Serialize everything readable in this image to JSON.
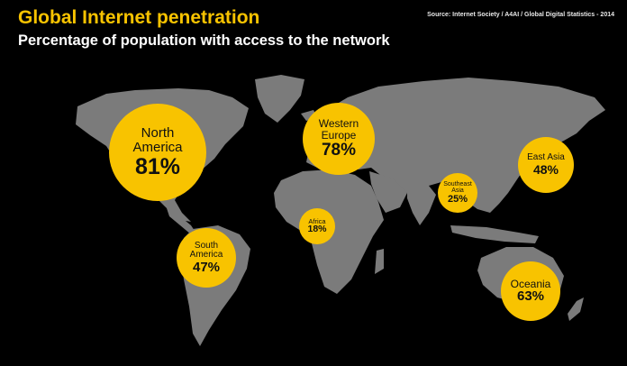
{
  "header": {
    "title": "Global Internet penetration",
    "subtitle": "Percentage of population with access to the network",
    "source": "Source: Internet Society / A4AI / Global Digital Statistics - 2014"
  },
  "colors": {
    "background": "#000000",
    "land": "#7b7b7b",
    "bubble": "#F8C300",
    "title": "#F8C300"
  },
  "regions": [
    {
      "label": "North America",
      "value": "81%"
    },
    {
      "label": "Western Europe",
      "value": "78%"
    },
    {
      "label": "East Asia",
      "value": "48%"
    },
    {
      "label": "Southeast Asia",
      "value": "25%"
    },
    {
      "label": "Africa",
      "value": "18%"
    },
    {
      "label": "South America",
      "value": "47%"
    },
    {
      "label": "Oceania",
      "value": "63%"
    }
  ]
}
